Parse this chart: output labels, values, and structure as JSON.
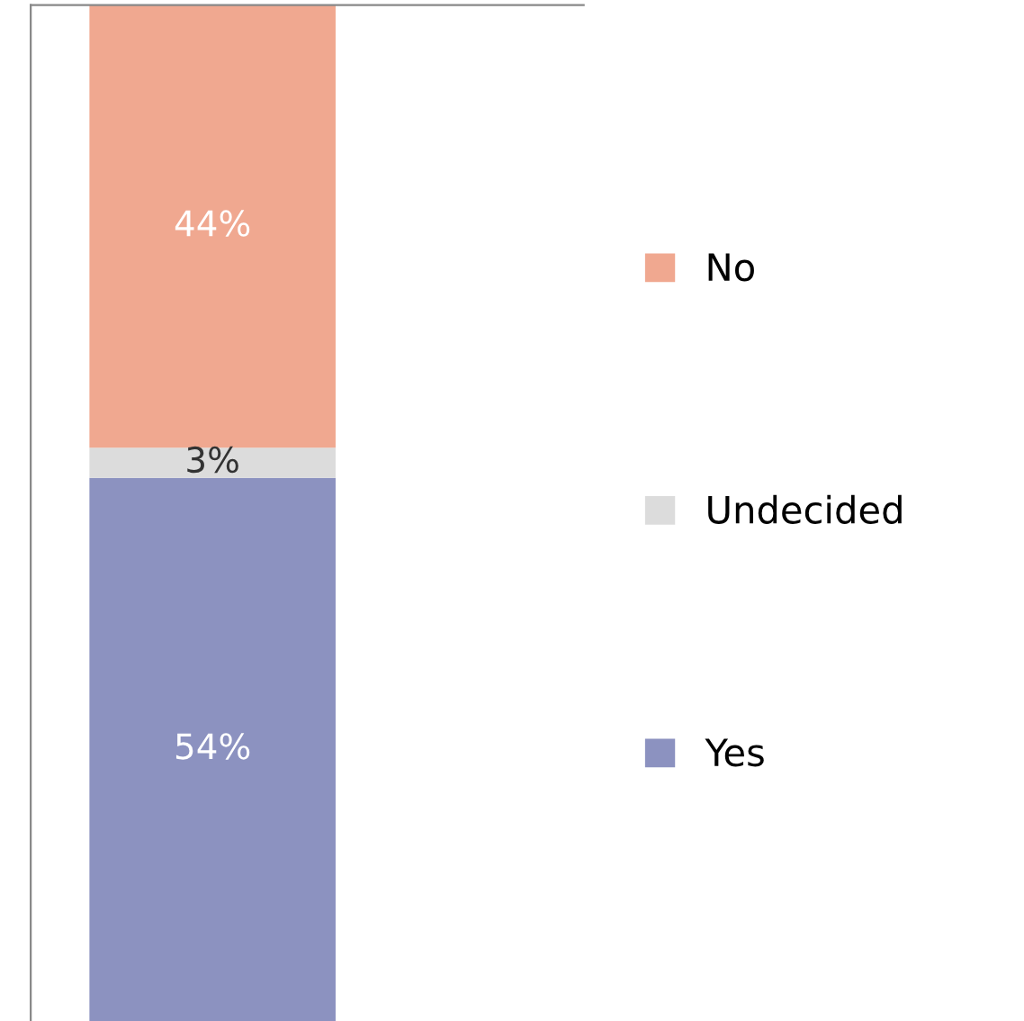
{
  "chart_data": {
    "type": "bar",
    "stacked": true,
    "legend": "right",
    "categories": [
      null
    ],
    "series": [
      {
        "name": "Yes",
        "color": "#8c92c0",
        "values": [
          54
        ],
        "value_labels": [
          "54%"
        ]
      },
      {
        "name": "Undecided",
        "color": "#dcdcdc",
        "values": [
          3
        ],
        "value_labels": [
          "3%"
        ]
      },
      {
        "name": "No",
        "color": "#f0a890",
        "values": [
          44
        ],
        "value_labels": [
          "44%"
        ]
      }
    ]
  }
}
